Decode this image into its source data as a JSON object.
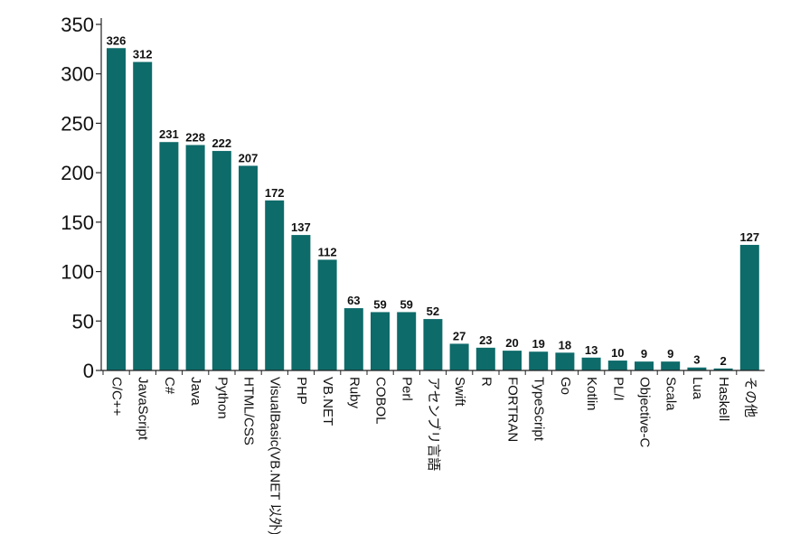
{
  "chart_data": {
    "type": "bar",
    "title": "",
    "xlabel": "",
    "ylabel": "",
    "ylim": [
      0,
      350
    ],
    "yticks": [
      0,
      50,
      100,
      150,
      200,
      250,
      300,
      350
    ],
    "grid": false,
    "bar_color": "#0d6b6a",
    "categories": [
      "C/C++",
      "JavaScript",
      "C#",
      "Java",
      "Python",
      "HTML/CSS",
      "VisualBasic(VB.NET 以外)",
      "PHP",
      "VB.NET",
      "Ruby",
      "COBOL",
      "Perl",
      "アセンブリ言語",
      "Swift",
      "R",
      "FORTRAN",
      "TypeScript",
      "Go",
      "Kotlin",
      "PL/I",
      "Objective-C",
      "Scala",
      "Lua",
      "Haskell",
      "その他"
    ],
    "values": [
      326,
      312,
      231,
      228,
      222,
      207,
      172,
      137,
      112,
      63,
      59,
      59,
      52,
      27,
      23,
      20,
      19,
      18,
      13,
      10,
      9,
      9,
      3,
      2,
      127
    ]
  }
}
